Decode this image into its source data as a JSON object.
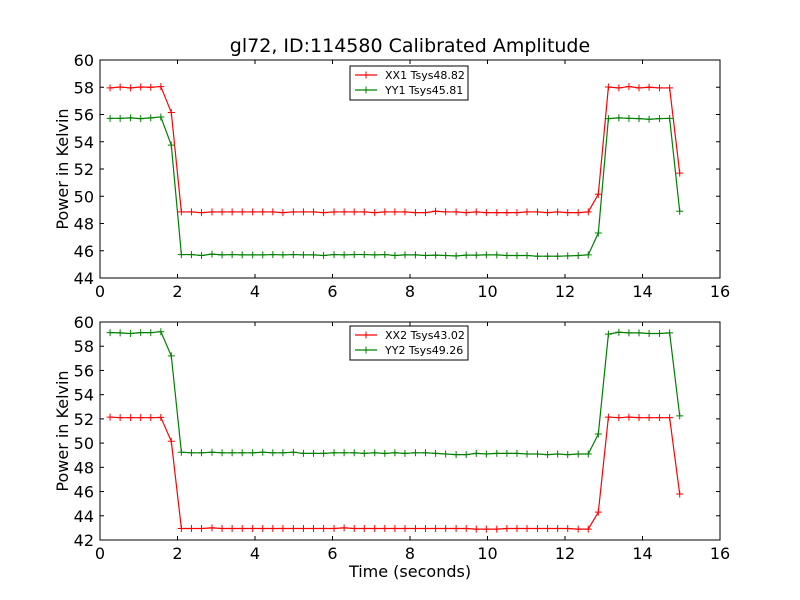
{
  "title": "gl72, ID:114580 Calibrated Amplitude",
  "chart_data": [
    {
      "type": "line",
      "title": "gl72, ID:114580 Calibrated Amplitude",
      "xlabel": "",
      "ylabel": "Power in Kelvin",
      "xlim": [
        0,
        16
      ],
      "ylim": [
        44,
        60
      ],
      "xticks": [
        0,
        2,
        4,
        6,
        8,
        10,
        12,
        14,
        16
      ],
      "yticks": [
        44,
        46,
        48,
        50,
        52,
        54,
        56,
        58,
        60
      ],
      "grid": false,
      "legend_position": "upper center",
      "x": [
        0.26,
        0.52,
        0.79,
        1.05,
        1.31,
        1.57,
        1.84,
        2.1,
        2.36,
        2.62,
        2.89,
        3.15,
        3.41,
        3.67,
        3.94,
        4.2,
        4.46,
        4.72,
        4.99,
        5.25,
        5.51,
        5.77,
        6.04,
        6.3,
        6.56,
        6.82,
        7.09,
        7.35,
        7.61,
        7.87,
        8.14,
        8.4,
        8.66,
        8.92,
        9.19,
        9.45,
        9.71,
        9.97,
        10.24,
        10.5,
        10.76,
        11.02,
        11.29,
        11.55,
        11.81,
        12.07,
        12.34,
        12.6,
        12.86,
        13.12,
        13.39,
        13.65,
        13.91,
        14.17,
        14.44,
        14.7,
        14.96
      ],
      "series": [
        {
          "name": "XX1 Tsys48.82",
          "color": "#ff0000",
          "values": [
            57.95,
            58.02,
            57.95,
            58.02,
            58.0,
            58.05,
            56.15,
            48.85,
            48.85,
            48.8,
            48.85,
            48.85,
            48.85,
            48.85,
            48.85,
            48.85,
            48.85,
            48.8,
            48.85,
            48.85,
            48.85,
            48.8,
            48.85,
            48.85,
            48.85,
            48.85,
            48.8,
            48.85,
            48.85,
            48.85,
            48.8,
            48.8,
            48.9,
            48.85,
            48.85,
            48.8,
            48.85,
            48.8,
            48.8,
            48.8,
            48.8,
            48.85,
            48.85,
            48.8,
            48.85,
            48.8,
            48.8,
            48.85,
            50.15,
            58.02,
            57.95,
            58.05,
            57.95,
            58.0,
            57.95,
            57.95,
            51.7
          ]
        },
        {
          "name": "YY1 Tsys45.81",
          "color": "#008000",
          "values": [
            55.72,
            55.72,
            55.75,
            55.7,
            55.75,
            55.82,
            53.75,
            45.72,
            45.72,
            45.65,
            45.75,
            45.7,
            45.72,
            45.7,
            45.7,
            45.7,
            45.72,
            45.7,
            45.72,
            45.7,
            45.7,
            45.65,
            45.72,
            45.7,
            45.72,
            45.72,
            45.7,
            45.72,
            45.65,
            45.7,
            45.7,
            45.65,
            45.68,
            45.65,
            45.62,
            45.68,
            45.68,
            45.7,
            45.7,
            45.65,
            45.65,
            45.65,
            45.6,
            45.6,
            45.6,
            45.62,
            45.65,
            45.7,
            47.3,
            55.7,
            55.75,
            55.72,
            55.7,
            55.65,
            55.7,
            55.72,
            48.9
          ]
        }
      ]
    },
    {
      "type": "line",
      "title": "",
      "xlabel": "Time (seconds)",
      "ylabel": "Power in Kelvin",
      "xlim": [
        0,
        16
      ],
      "ylim": [
        42,
        60
      ],
      "xticks": [
        0,
        2,
        4,
        6,
        8,
        10,
        12,
        14,
        16
      ],
      "yticks": [
        42,
        44,
        46,
        48,
        50,
        52,
        54,
        56,
        58,
        60
      ],
      "grid": false,
      "legend_position": "upper center",
      "x": [
        0.26,
        0.52,
        0.79,
        1.05,
        1.31,
        1.57,
        1.84,
        2.1,
        2.36,
        2.62,
        2.89,
        3.15,
        3.41,
        3.67,
        3.94,
        4.2,
        4.46,
        4.72,
        4.99,
        5.25,
        5.51,
        5.77,
        6.04,
        6.3,
        6.56,
        6.82,
        7.09,
        7.35,
        7.61,
        7.87,
        8.14,
        8.4,
        8.66,
        8.92,
        9.19,
        9.45,
        9.71,
        9.97,
        10.24,
        10.5,
        10.76,
        11.02,
        11.29,
        11.55,
        11.81,
        12.07,
        12.34,
        12.6,
        12.86,
        13.12,
        13.39,
        13.65,
        13.91,
        14.17,
        14.44,
        14.7,
        14.96
      ],
      "series": [
        {
          "name": "XX2 Tsys43.02",
          "color": "#ff0000",
          "values": [
            52.15,
            52.1,
            52.1,
            52.1,
            52.1,
            52.12,
            50.15,
            42.95,
            42.95,
            42.95,
            43.0,
            42.95,
            42.95,
            42.95,
            42.95,
            42.95,
            42.95,
            42.95,
            42.95,
            42.95,
            42.95,
            42.95,
            42.95,
            43.0,
            42.95,
            42.95,
            42.95,
            42.95,
            42.95,
            42.95,
            42.95,
            42.95,
            42.95,
            42.95,
            42.95,
            42.95,
            42.9,
            42.9,
            42.9,
            42.95,
            42.95,
            42.95,
            42.95,
            42.95,
            42.95,
            42.95,
            42.9,
            42.9,
            44.3,
            52.15,
            52.1,
            52.15,
            52.1,
            52.1,
            52.1,
            52.1,
            45.8
          ]
        },
        {
          "name": "YY2 Tsys49.26",
          "color": "#008000",
          "values": [
            59.12,
            59.1,
            59.05,
            59.12,
            59.12,
            59.2,
            57.2,
            49.25,
            49.2,
            49.2,
            49.25,
            49.2,
            49.2,
            49.2,
            49.2,
            49.25,
            49.2,
            49.2,
            49.25,
            49.15,
            49.15,
            49.15,
            49.2,
            49.2,
            49.2,
            49.15,
            49.2,
            49.15,
            49.2,
            49.15,
            49.2,
            49.2,
            49.15,
            49.1,
            49.05,
            49.05,
            49.15,
            49.1,
            49.15,
            49.15,
            49.15,
            49.1,
            49.1,
            49.05,
            49.1,
            49.05,
            49.1,
            49.1,
            50.75,
            59.0,
            59.15,
            59.1,
            59.1,
            59.05,
            59.05,
            59.1,
            52.25
          ]
        }
      ]
    }
  ]
}
